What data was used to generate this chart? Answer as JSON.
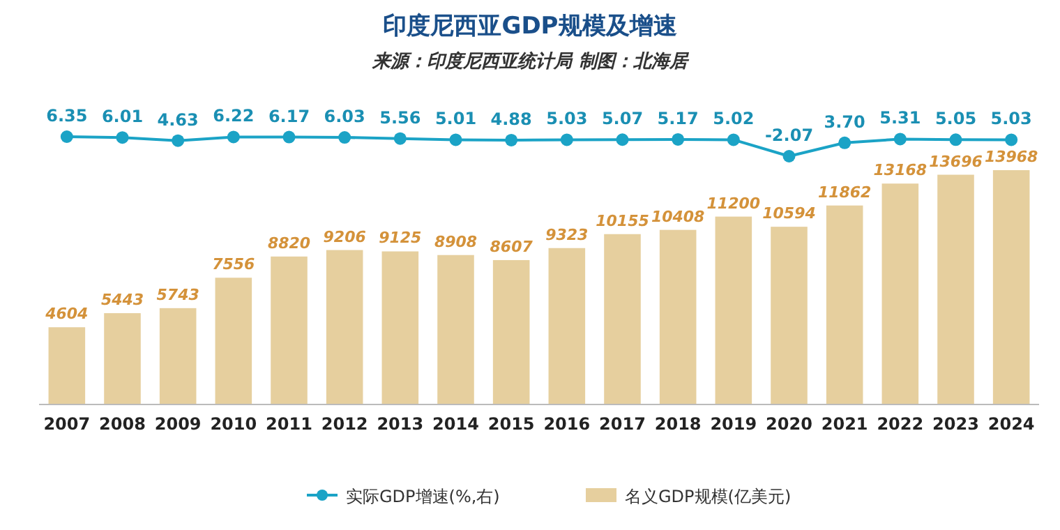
{
  "chart_data": [
    {
      "type": "line",
      "title": "印度尼西亚GDP规模及增速",
      "subtitle": "来源：印度尼西亚统计局  制图：北海居",
      "categories": [
        null,
        null,
        null,
        null,
        null,
        null,
        null,
        null,
        null,
        null,
        null,
        null,
        null,
        null,
        null,
        null,
        null,
        null
      ],
      "series": [
        {
          "name": "实际GDP增速(%,右)",
          "color": "#1ba3c6",
          "values": [
            6.35,
            6.01,
            4.63,
            6.22,
            6.17,
            6.03,
            5.56,
            5.01,
            4.88,
            5.03,
            5.07,
            5.17,
            5.02,
            -2.07,
            3.7,
            5.31,
            5.05,
            5.03
          ],
          "value_labels": [
            "6.35",
            "6.01",
            "4.63",
            "6.22",
            "6.17",
            "6.03",
            "5.56",
            "5.01",
            "4.88",
            "5.03",
            "5.07",
            "5.17",
            "5.02",
            "-2.07",
            "3.70",
            "5.31",
            "5.05",
            "5.03"
          ]
        }
      ],
      "marker": "circle",
      "legend": "bottom",
      "tick_labels": false
    },
    {
      "type": "bar",
      "categories": [
        "2007",
        "2008",
        "2009",
        "2010",
        "2011",
        "2012",
        "2013",
        "2014",
        "2015",
        "2016",
        "2017",
        "2018",
        "2019",
        "2020",
        "2021",
        "2022",
        "2023",
        "2024"
      ],
      "series": [
        {
          "name": "名义GDP规模(亿美元)",
          "color": "#e6cf9e",
          "values": [
            4604,
            5443,
            5743,
            7556,
            8820,
            9206,
            9125,
            8908,
            8607,
            9323,
            10155,
            10408,
            11200,
            10594,
            11862,
            13168,
            13696,
            13968
          ]
        }
      ],
      "data_labels": true,
      "legend": "bottom",
      "tick_labels": "x"
    }
  ]
}
